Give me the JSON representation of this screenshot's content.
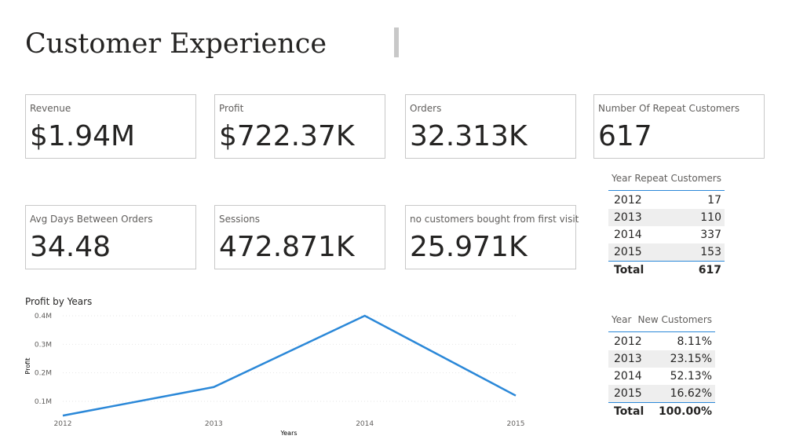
{
  "header": {
    "title": "Customer Experience"
  },
  "cards": [
    {
      "label": "Revenue",
      "value": "$1.94M"
    },
    {
      "label": "Profit",
      "value": "$722.37K"
    },
    {
      "label": "Orders",
      "value": "32.313K"
    },
    {
      "label": "Number Of Repeat Customers",
      "value": "617"
    },
    {
      "label": "Avg Days Between Orders",
      "value": "34.48"
    },
    {
      "label": "Sessions",
      "value": "472.871K"
    },
    {
      "label": "no customers bought from first visit",
      "value": "25.971K"
    }
  ],
  "tables": [
    {
      "columns": [
        "Year",
        "Repeat Customers"
      ],
      "rows": [
        [
          "2012",
          17
        ],
        [
          "2013",
          110
        ],
        [
          "2014",
          337
        ],
        [
          "2015",
          153
        ]
      ],
      "total": [
        "Total",
        617
      ]
    },
    {
      "columns": [
        "Year",
        "New Customers"
      ],
      "rows": [
        [
          "2012",
          "8.11%"
        ],
        [
          "2013",
          "23.15%"
        ],
        [
          "2014",
          "52.13%"
        ],
        [
          "2015",
          "16.62%"
        ]
      ],
      "total": [
        "Total",
        "100.00%"
      ]
    }
  ],
  "chart_data": {
    "type": "line",
    "title": "Profit by Years",
    "x_label": "Years",
    "y_label": "Profit",
    "categories": [
      "2012",
      "2013",
      "2014",
      "2015"
    ],
    "series": [
      {
        "name": "Profit",
        "color": "#2b88d8",
        "values": [
          0.05,
          0.15,
          0.4,
          0.12
        ]
      }
    ],
    "ylim": [
      0.02,
      0.4
    ],
    "yticks": [
      {
        "value": 0.1,
        "label": "0.1M"
      },
      {
        "value": 0.2,
        "label": "0.2M"
      },
      {
        "value": 0.3,
        "label": "0.3M"
      },
      {
        "value": 0.4,
        "label": "0.4M"
      }
    ],
    "grid": true
  }
}
